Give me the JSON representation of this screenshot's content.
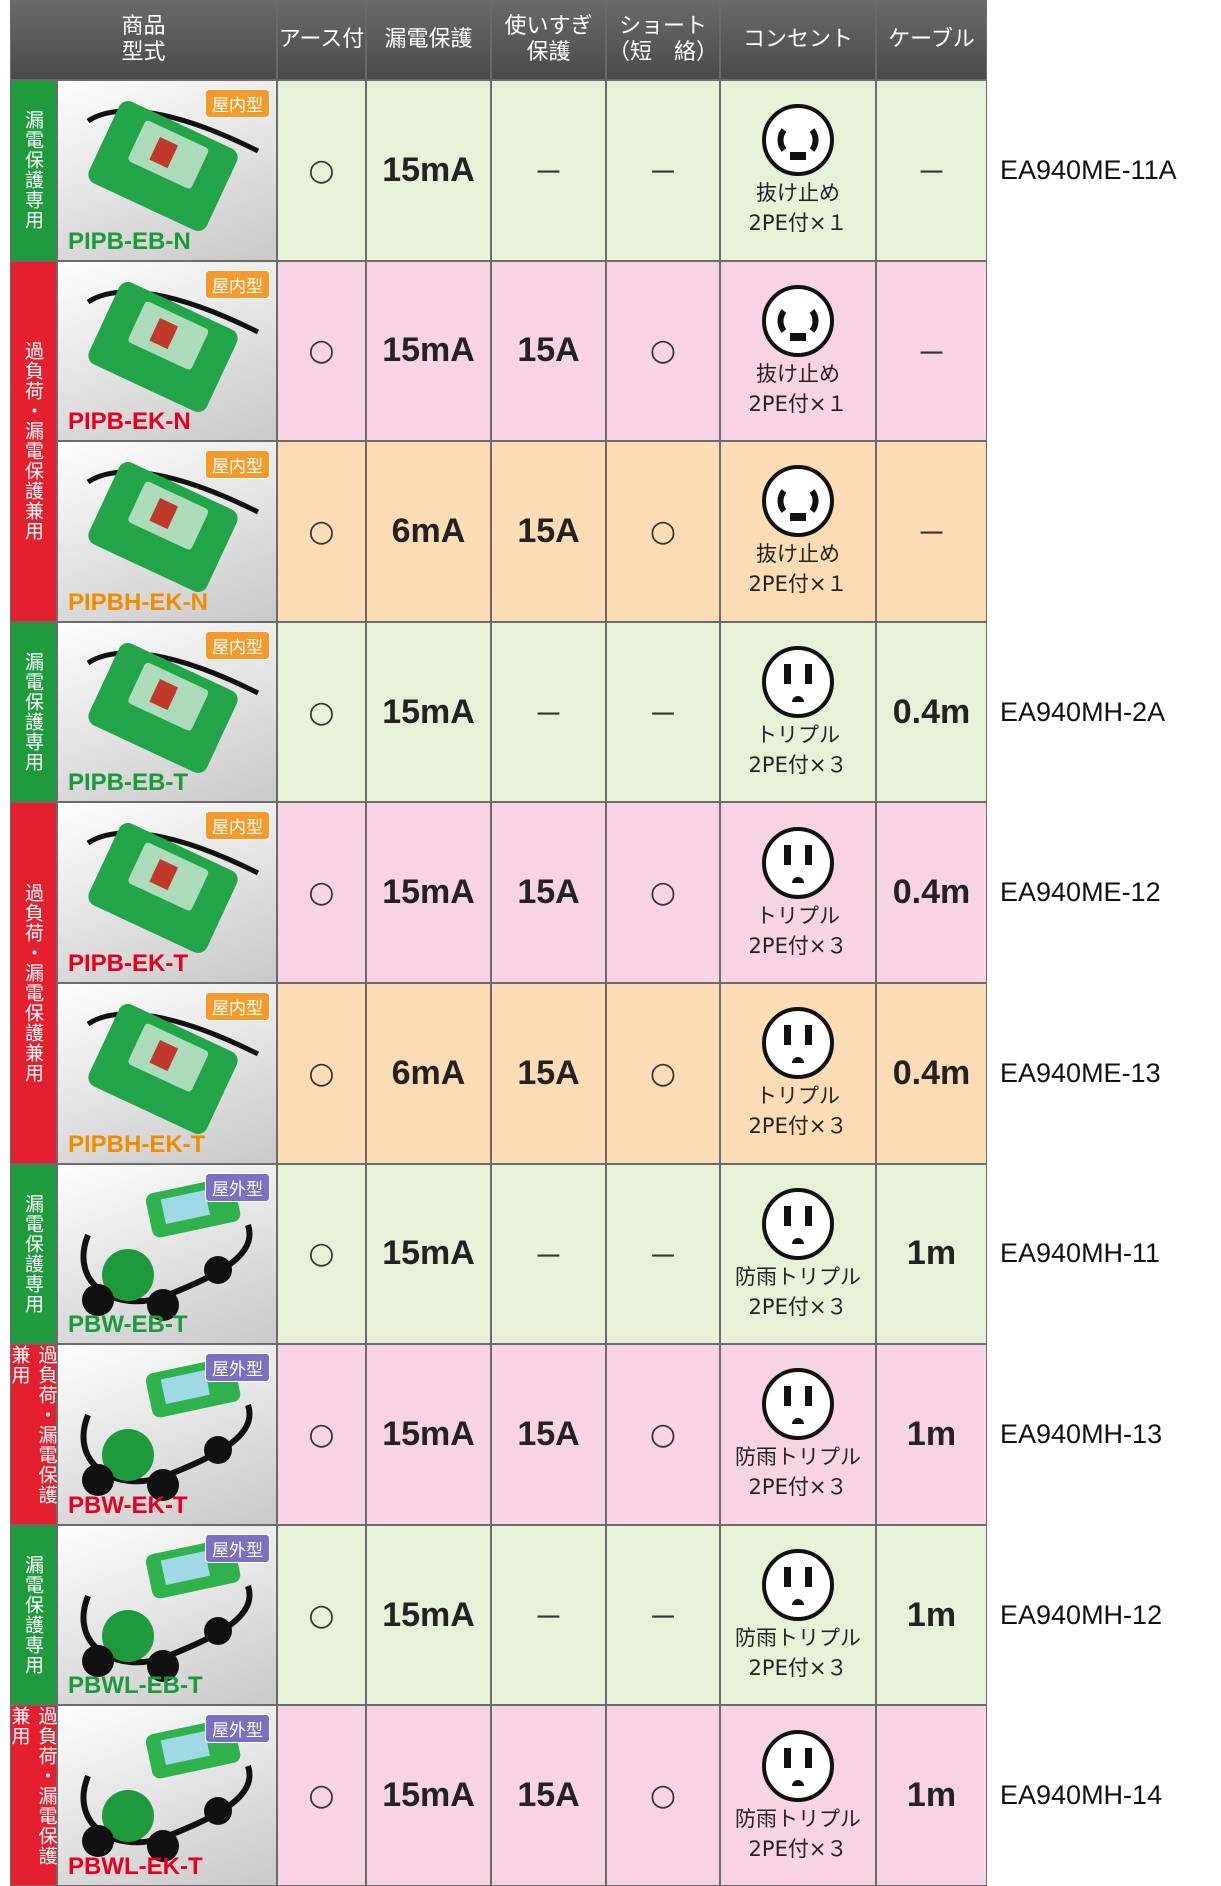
{
  "header": {
    "product": [
      "商品",
      "型式"
    ],
    "columns": [
      [
        "アース付"
      ],
      [
        "漏電保護"
      ],
      [
        "使いすぎ",
        "保護"
      ],
      [
        "ショート",
        "（短　絡）"
      ],
      [
        "コンセント"
      ],
      [
        "ケーブル"
      ]
    ]
  },
  "groups": [
    {
      "label": "漏電保護専用",
      "color": "#1f9a3d",
      "rows": [
        {
          "badge": "屋内型",
          "badge_color": "#f39a2a",
          "model": "PIPB-EB-N",
          "model_color": "#1a9a3a",
          "bg": "#e6f1d8",
          "earth": "○",
          "leak": "15mA",
          "overload": "－",
          "short": "－",
          "outlet_type": "抜け止め",
          "outlet_spec": "2PE付×１",
          "cable": "－",
          "code": "EA940ME-11A"
        }
      ]
    },
    {
      "label": "過負荷・漏電保護兼用",
      "color": "#e5202e",
      "rows": [
        {
          "badge": "屋内型",
          "badge_color": "#f39a2a",
          "model": "PIPB-EK-N",
          "model_color": "#e60020",
          "bg": "#f7d3e4",
          "earth": "○",
          "leak": "15mA",
          "overload": "15A",
          "short": "○",
          "outlet_type": "抜け止め",
          "outlet_spec": "2PE付×１",
          "cable": "－"
        },
        {
          "badge": "屋内型",
          "badge_color": "#f39a2a",
          "model": "PIPBH-EK-N",
          "model_color": "#f08c00",
          "bg": "#fbdcb4",
          "earth": "○",
          "leak": "6mA",
          "overload": "15A",
          "short": "○",
          "outlet_type": "抜け止め",
          "outlet_spec": "2PE付×１",
          "cable": "－"
        }
      ]
    },
    {
      "label": "漏電保護専用",
      "color": "#1f9a3d",
      "rows": [
        {
          "badge": "屋内型",
          "badge_color": "#f39a2a",
          "model": "PIPB-EB-T",
          "model_color": "#1a9a3a",
          "bg": "#e6f1d8",
          "earth": "○",
          "leak": "15mA",
          "overload": "－",
          "short": "－",
          "outlet_type": "トリプル",
          "outlet_spec": "2PE付×３",
          "cable": "0.4m",
          "code": "EA940MH-2A"
        }
      ]
    },
    {
      "label": "過負荷・漏電保護兼用",
      "color": "#e5202e",
      "rows": [
        {
          "badge": "屋内型",
          "badge_color": "#f39a2a",
          "model": "PIPB-EK-T",
          "model_color": "#e60020",
          "bg": "#f7d3e4",
          "earth": "○",
          "leak": "15mA",
          "overload": "15A",
          "short": "○",
          "outlet_type": "トリプル",
          "outlet_spec": "2PE付×３",
          "cable": "0.4m",
          "code": "EA940ME-12"
        },
        {
          "badge": "屋内型",
          "badge_color": "#f39a2a",
          "model": "PIPBH-EK-T",
          "model_color": "#f08c00",
          "bg": "#fbdcb4",
          "earth": "○",
          "leak": "6mA",
          "overload": "15A",
          "short": "○",
          "outlet_type": "トリプル",
          "outlet_spec": "2PE付×３",
          "cable": "0.4m",
          "code": "EA940ME-13"
        }
      ]
    },
    {
      "label": "漏電保護専用",
      "color": "#1f9a3d",
      "rows": [
        {
          "badge": "屋外型",
          "badge_color": "#7a6fc0",
          "model": "PBW-EB-T",
          "model_color": "#1a9a3a",
          "bg": "#e6f1d8",
          "earth": "○",
          "leak": "15mA",
          "overload": "－",
          "short": "－",
          "outlet_type": "防雨トリプル",
          "outlet_spec": "2PE付×３",
          "cable": "1m",
          "code": "EA940MH-11"
        }
      ]
    },
    {
      "label": "過負荷・漏電保護兼用",
      "color": "#e5202e",
      "rows": [
        {
          "badge": "屋外型",
          "badge_color": "#7a6fc0",
          "model": "PBW-EK-T",
          "model_color": "#e60020",
          "bg": "#f7d3e4",
          "earth": "○",
          "leak": "15mA",
          "overload": "15A",
          "short": "○",
          "outlet_type": "防雨トリプル",
          "outlet_spec": "2PE付×３",
          "cable": "1m",
          "code": "EA940MH-13"
        }
      ]
    },
    {
      "label": "漏電保護専用",
      "color": "#1f9a3d",
      "rows": [
        {
          "badge": "屋外型",
          "badge_color": "#7a6fc0",
          "model": "PBWL-EB-T",
          "model_color": "#1a9a3a",
          "bg": "#e6f1d8",
          "earth": "○",
          "leak": "15mA",
          "overload": "－",
          "short": "－",
          "outlet_type": "防雨トリプル",
          "outlet_spec": "2PE付×３",
          "cable": "1m",
          "code": "EA940MH-12"
        }
      ]
    },
    {
      "label": "過負荷・漏電保護兼用",
      "color": "#e5202e",
      "rows": [
        {
          "badge": "屋外型",
          "badge_color": "#7a6fc0",
          "model": "PBWL-EK-T",
          "model_color": "#e60020",
          "bg": "#f7d3e4",
          "earth": "○",
          "leak": "15mA",
          "overload": "15A",
          "short": "○",
          "outlet_type": "防雨トリプル",
          "outlet_spec": "2PE付×３",
          "cable": "1m",
          "code": "EA940MH-14"
        }
      ]
    }
  ]
}
